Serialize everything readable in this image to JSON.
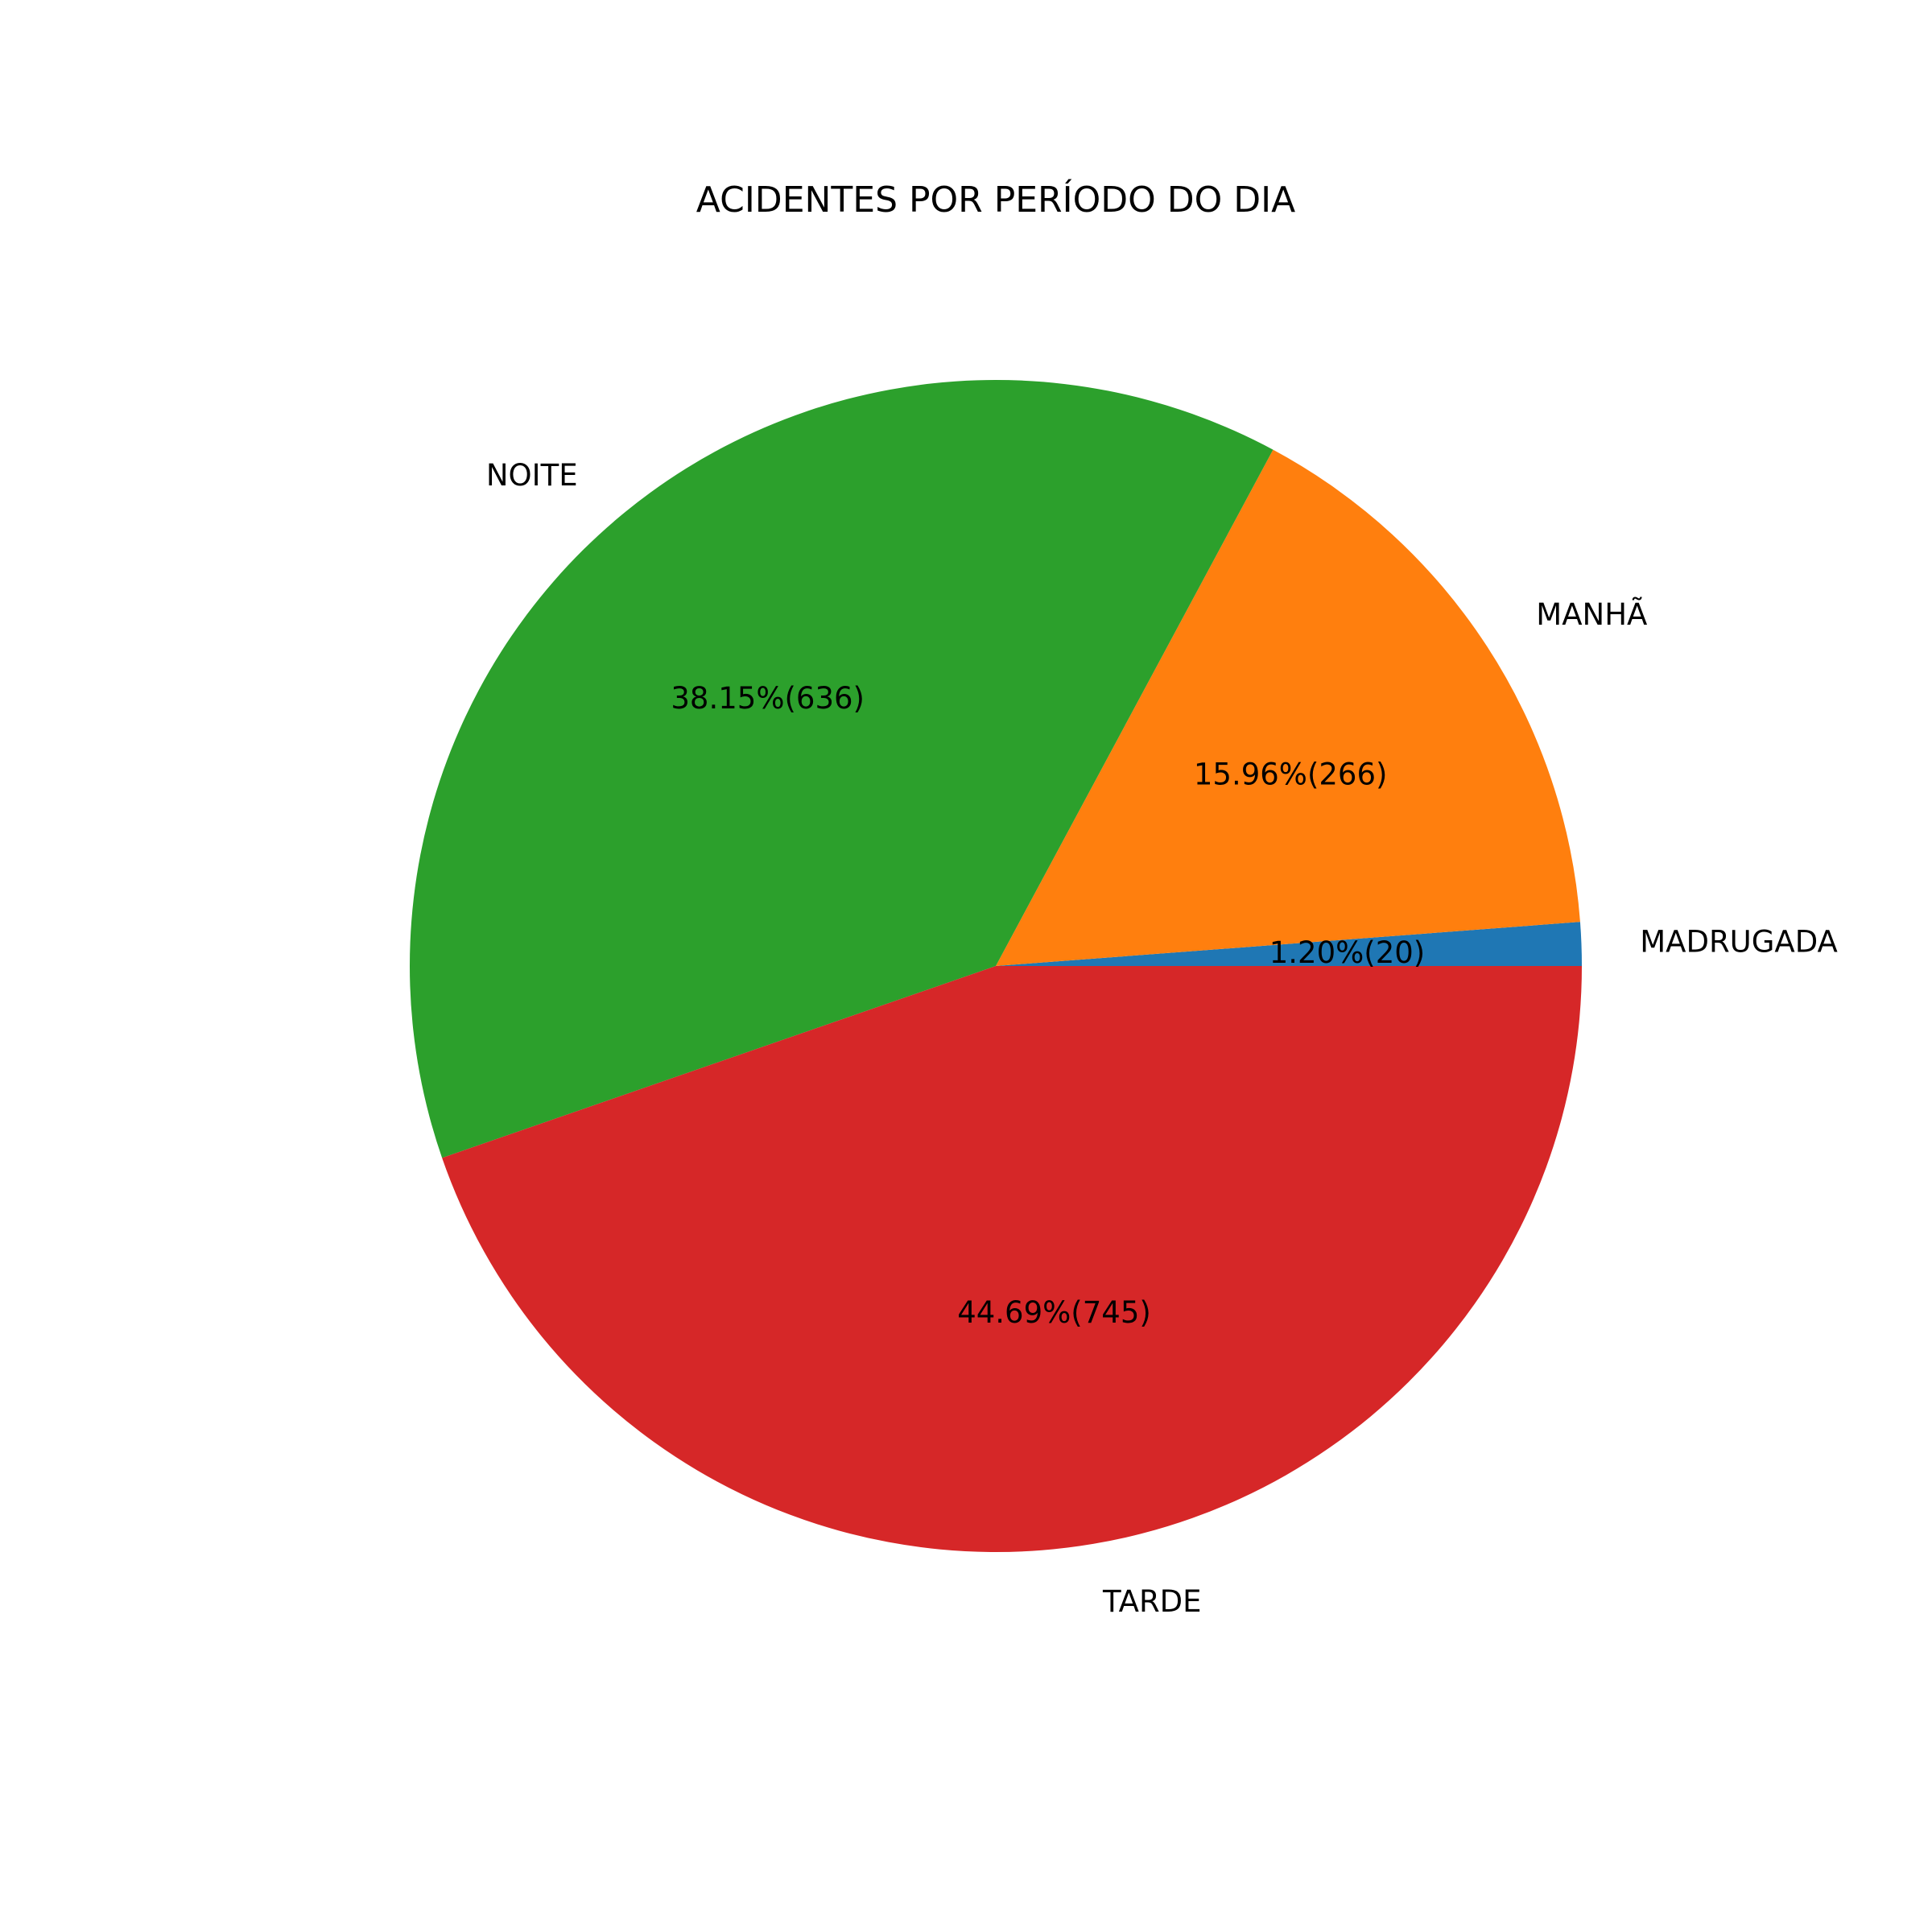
{
  "chart_data": {
    "type": "pie",
    "title": "ACIDENTES POR PERÍODO DO DIA",
    "slices": [
      {
        "label": "MADRUGADA",
        "value": 20,
        "pct_text": "1.20%(20)",
        "color": "#1f77b4"
      },
      {
        "label": "MANHÃ",
        "value": 266,
        "pct_text": "15.96%(266)",
        "color": "#ff7f0e"
      },
      {
        "label": "NOITE",
        "value": 636,
        "pct_text": "38.15%(636)",
        "color": "#2ca02c"
      },
      {
        "label": "TARDE",
        "value": 745,
        "pct_text": "44.69%(745)",
        "color": "#d62728"
      }
    ],
    "start_angle_deg": 0,
    "direction": "counterclockwise"
  }
}
